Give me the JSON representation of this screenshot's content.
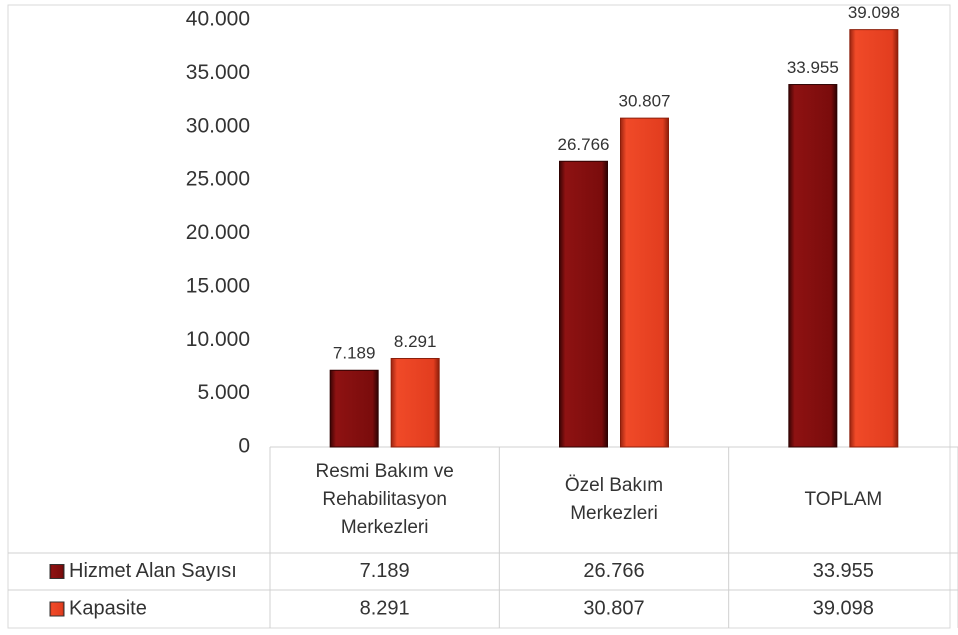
{
  "chart_data": {
    "type": "bar",
    "categories": [
      "Resmi Bakım ve Rehabilitasyon Merkezleri",
      "Özel Bakım Merkezleri",
      "TOPLAM"
    ],
    "series": [
      {
        "name": "Hizmet Alan Sayısı",
        "color": "#7a0c0c",
        "values": [
          7189,
          26766,
          33955
        ],
        "value_labels": [
          "7.189",
          "26.766",
          "33.955"
        ]
      },
      {
        "name": "Kapasite",
        "color": "#e23d1f",
        "values": [
          8291,
          30807,
          39098
        ],
        "value_labels": [
          "8.291",
          "30.807",
          "39.098"
        ]
      }
    ],
    "ylim": [
      0,
      40000
    ],
    "yticks": [
      0,
      {
        "value": 5000,
        "label": "5.000"
      },
      {
        "value": 10000,
        "label": "10.000"
      },
      {
        "value": 15000,
        "label": "15.000"
      },
      {
        "value": 20000,
        "label": "20.000"
      },
      {
        "value": 25000,
        "label": "25.000"
      },
      {
        "value": 30000,
        "label": "30.000"
      },
      {
        "value": 35000,
        "label": "35.000"
      },
      {
        "value": 40000,
        "label": "40.000"
      }
    ],
    "grid": false,
    "data_table": true
  }
}
